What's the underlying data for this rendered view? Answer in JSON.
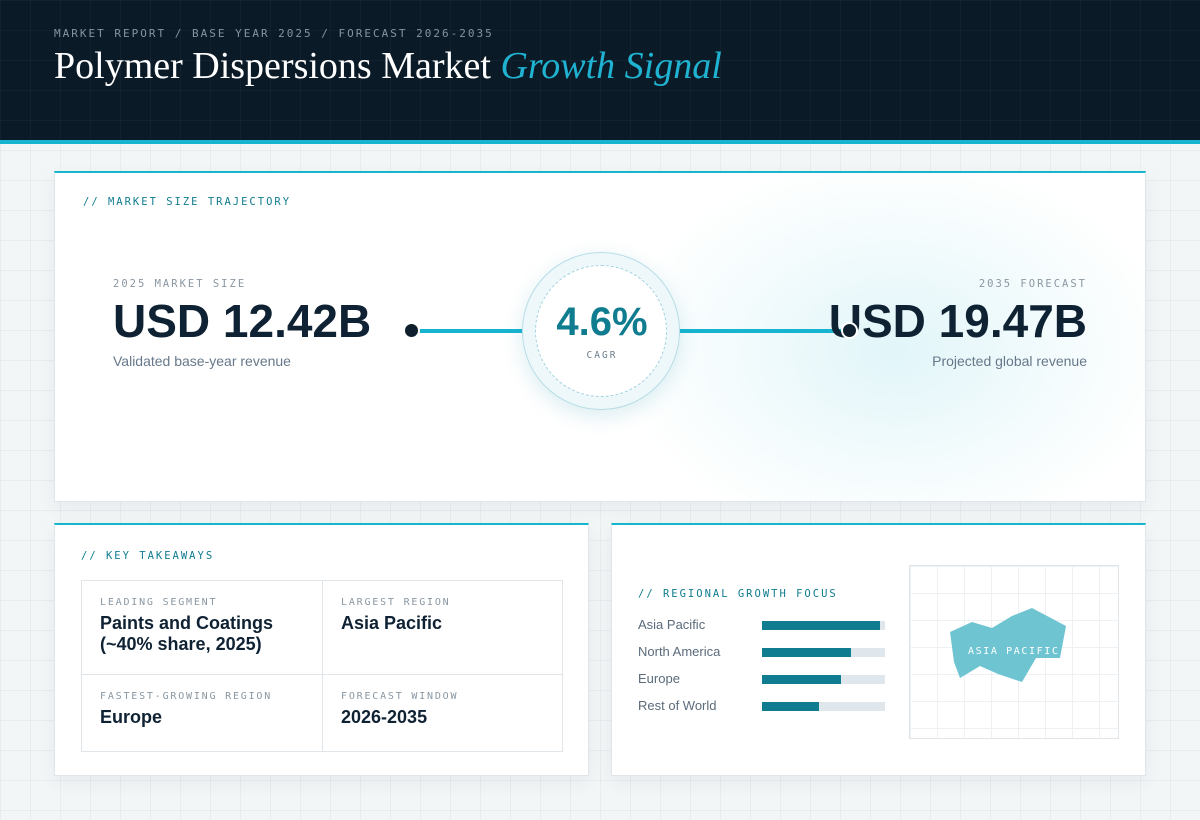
{
  "header": {
    "eyebrow": "MARKET REPORT / BASE YEAR 2025 / FORECAST 2026-2035",
    "title_main": "Polymer Dispersions Market",
    "title_accent": "Growth Signal"
  },
  "trajectory": {
    "section_label": "// MARKET SIZE TRAJECTORY",
    "base": {
      "label": "2025 MARKET SIZE",
      "value": "USD 12.42B",
      "caption": "Validated base-year revenue"
    },
    "forecast": {
      "label": "2035 FORECAST",
      "value": "USD 19.47B",
      "caption": "Projected global revenue"
    },
    "cagr": {
      "value": "4.6%",
      "label": "CAGR"
    }
  },
  "takeaways": {
    "section_label": "// KEY TAKEAWAYS",
    "items": [
      {
        "label": "LEADING SEGMENT",
        "value": "Paints and Coatings (~40% share, 2025)"
      },
      {
        "label": "LARGEST REGION",
        "value": "Asia Pacific"
      },
      {
        "label": "FASTEST-GROWING REGION",
        "value": "Europe"
      },
      {
        "label": "FORECAST WINDOW",
        "value": "2026-2035"
      }
    ]
  },
  "regional": {
    "section_label": "// REGIONAL GROWTH FOCUS",
    "bars": [
      {
        "name": "Asia Pacific",
        "value": 0.96
      },
      {
        "name": "North America",
        "value": 0.72
      },
      {
        "name": "Europe",
        "value": 0.64
      },
      {
        "name": "Rest of World",
        "value": 0.46
      }
    ],
    "map_label": "ASIA PACIFIC",
    "map_color": "#6fc4d1",
    "bar_color": "#0f7c8f"
  },
  "colors": {
    "accent": "#17b4cf",
    "dark": "#0b1a27",
    "teal": "#0f7c8f"
  }
}
